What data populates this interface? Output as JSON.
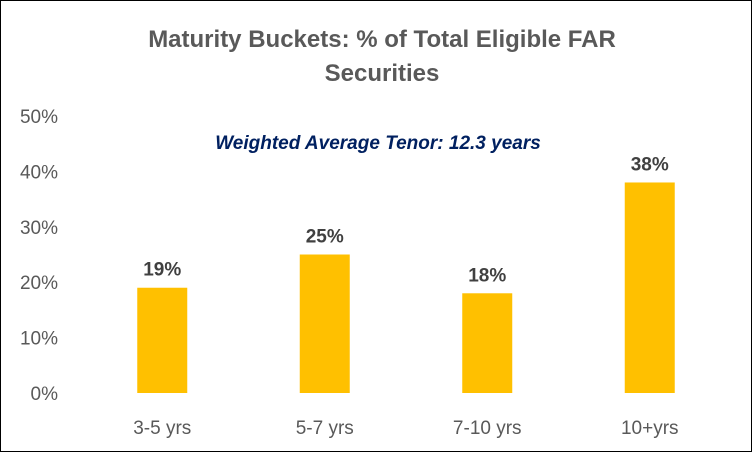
{
  "chart_data": {
    "type": "bar",
    "title_line1": "Maturity Buckets: % of Total Eligible FAR",
    "title_line2": "Securities",
    "annotation": "Weighted Average Tenor: 12.3 years",
    "categories": [
      "3-5 yrs",
      "5-7 yrs",
      "7-10 yrs",
      "10+yrs"
    ],
    "values": [
      19,
      25,
      18,
      38
    ],
    "data_labels": [
      "19%",
      "25%",
      "18%",
      "38%"
    ],
    "y_ticks": [
      0,
      10,
      20,
      30,
      40,
      50
    ],
    "y_tick_labels": [
      "0%",
      "10%",
      "20%",
      "30%",
      "40%",
      "50%"
    ],
    "ylim": [
      0,
      50
    ],
    "xlabel": "",
    "ylabel": "",
    "grid": false,
    "legend": "none",
    "bar_color": "#FFC000",
    "title_color": "#595959",
    "annotation_color": "#002060",
    "label_color": "#404040",
    "tick_color": "#595959"
  }
}
